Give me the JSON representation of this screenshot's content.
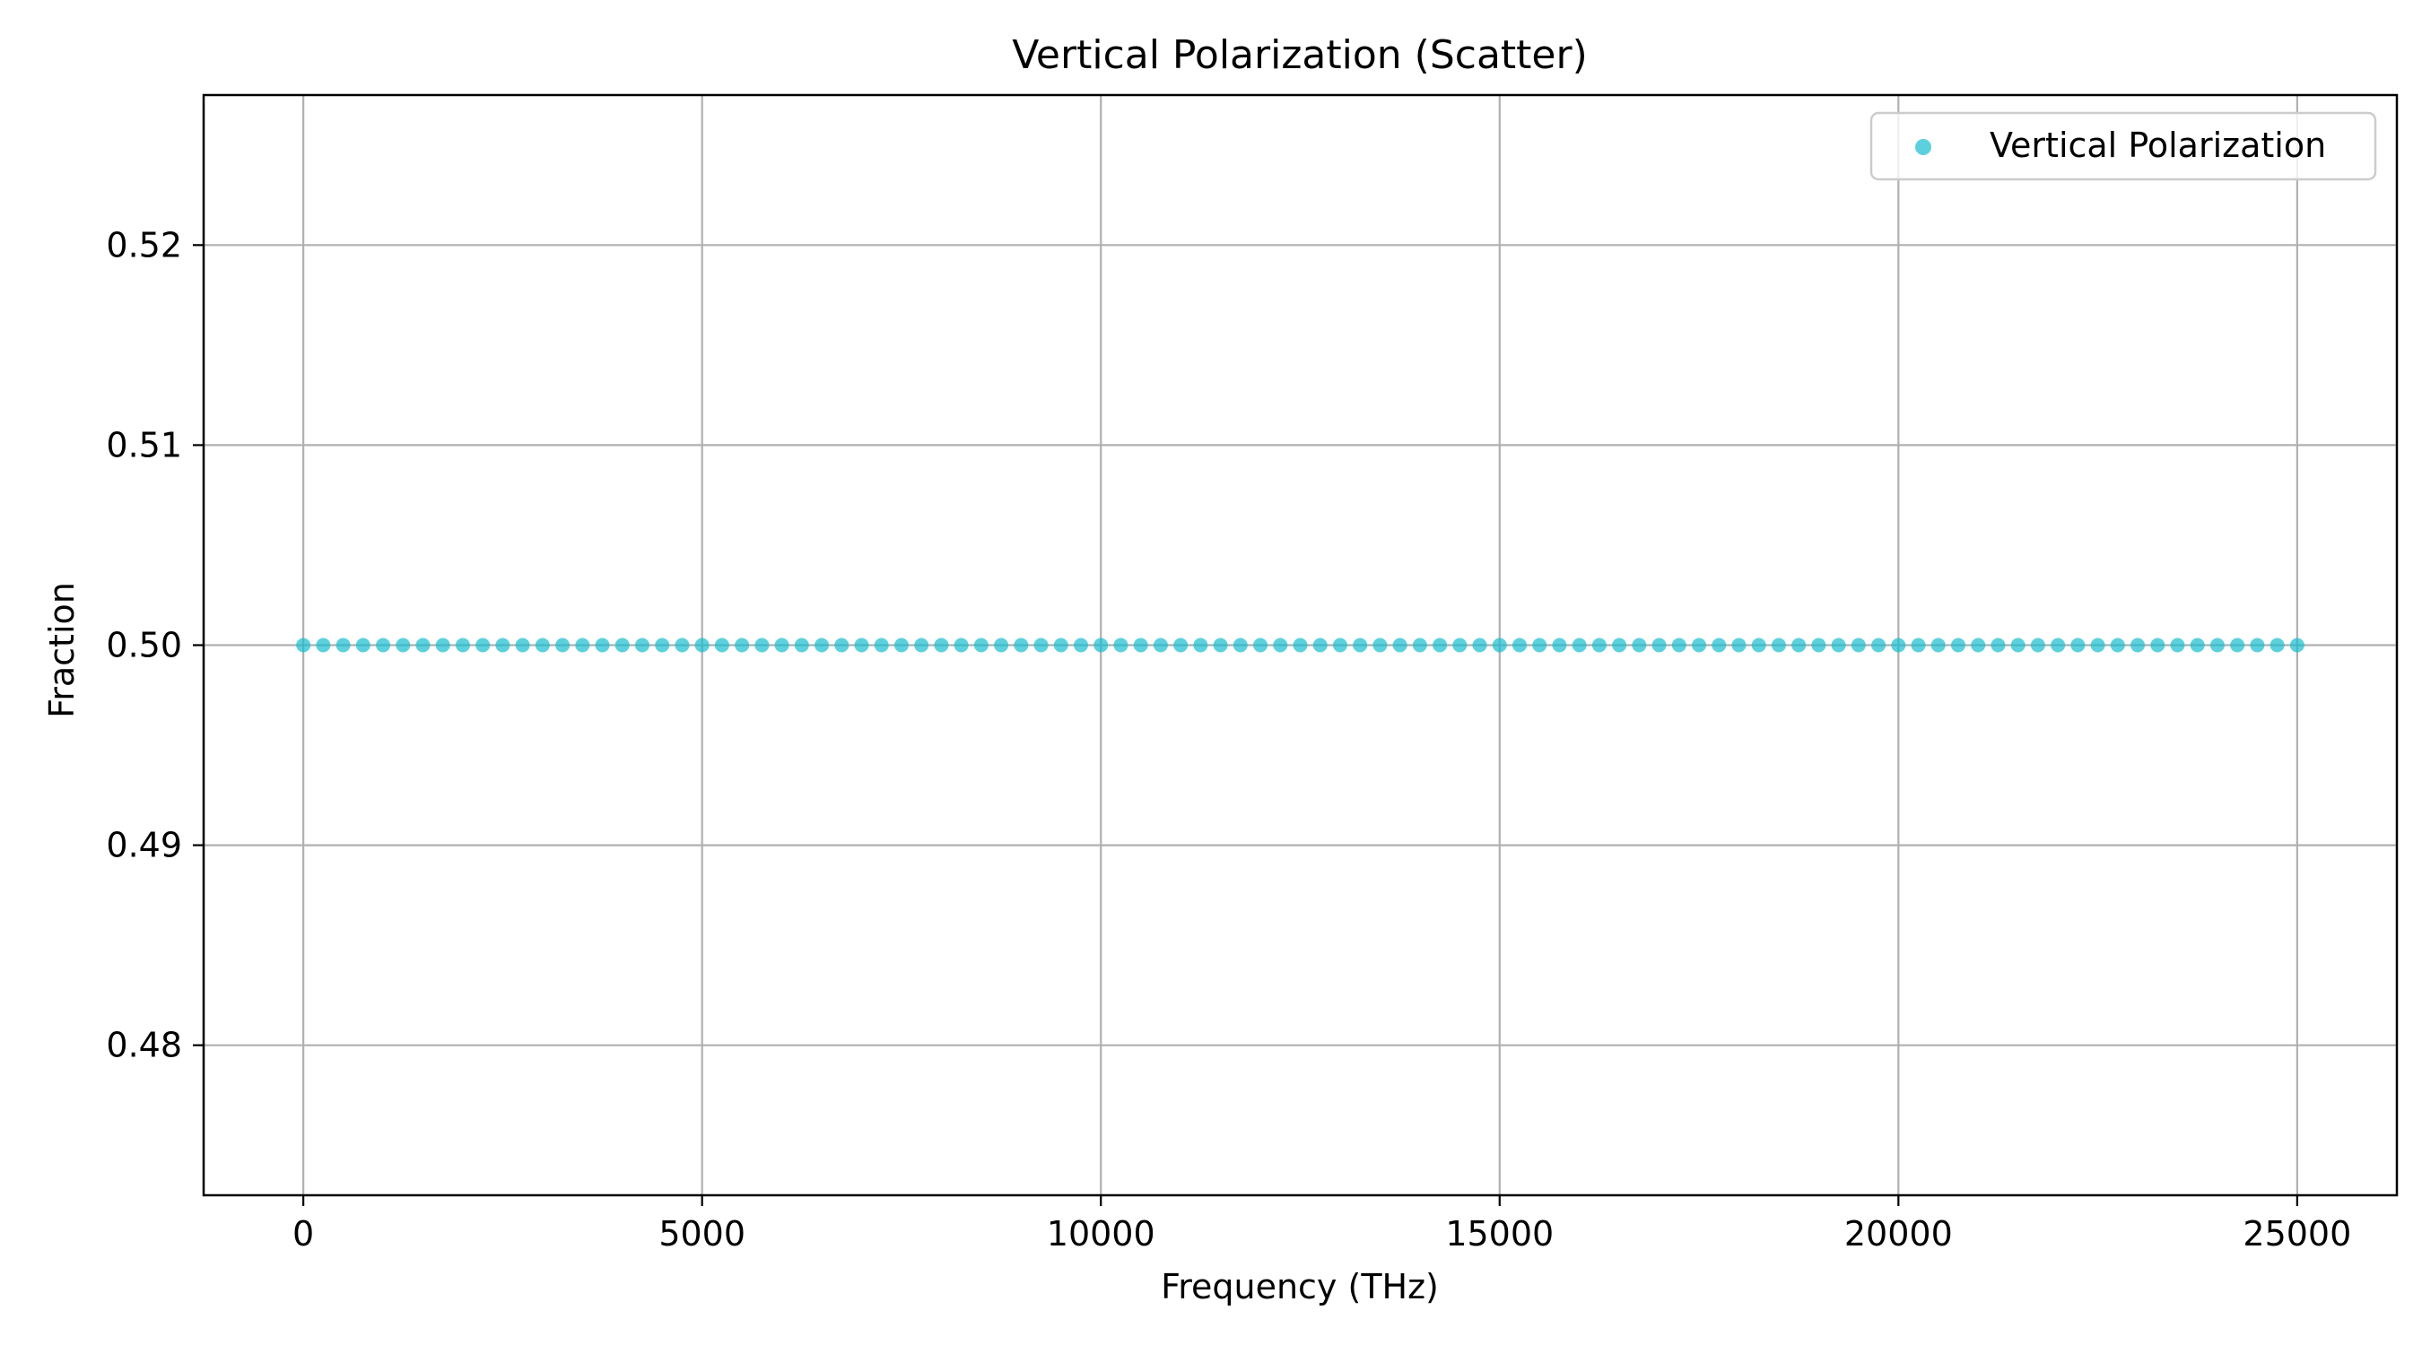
{
  "chart_data": {
    "type": "scatter",
    "title": "Vertical Polarization (Scatter)",
    "xlabel": "Frequency (THz)",
    "ylabel": "Fraction",
    "xlim": [
      -1250,
      26250
    ],
    "ylim": [
      0.4725,
      0.5275
    ],
    "xticks": [
      0,
      5000,
      10000,
      15000,
      20000,
      25000
    ],
    "xtick_labels": [
      "0",
      "5000",
      "10000",
      "15000",
      "20000",
      "25000"
    ],
    "yticks": [
      0.48,
      0.49,
      0.5,
      0.51,
      0.52
    ],
    "ytick_labels": [
      "0.48",
      "0.49",
      "0.50",
      "0.51",
      "0.52"
    ],
    "grid": true,
    "legend": {
      "position": "top-right",
      "entries": [
        "Vertical Polarization"
      ]
    },
    "series": [
      {
        "name": "Vertical Polarization",
        "color": "#17becf",
        "x_start": 0,
        "x_end": 25000,
        "x_step": 250,
        "y_constant": 0.5
      }
    ]
  }
}
